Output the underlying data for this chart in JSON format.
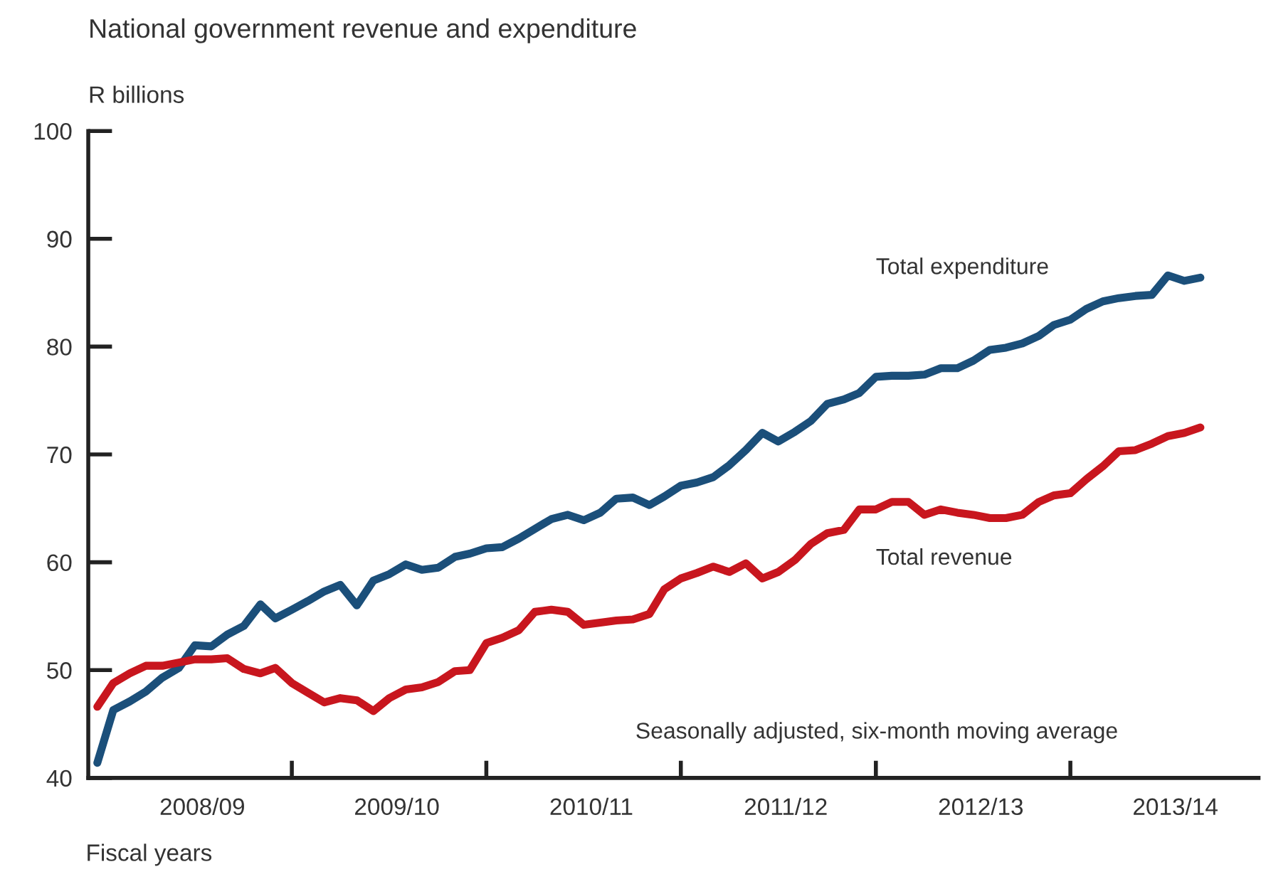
{
  "chart_data": {
    "type": "line",
    "title": "National government revenue and expenditure",
    "ylabel": "R billions",
    "xlabel": "Fiscal years",
    "annotations": [
      "Seasonally adjusted, six-month moving average"
    ],
    "x": [
      "2008-04",
      "2008-05",
      "2008-06",
      "2008-07",
      "2008-08",
      "2008-09",
      "2008-10",
      "2008-11",
      "2008-12",
      "2009-01",
      "2009-02",
      "2009-03",
      "2009-04",
      "2009-05",
      "2009-06",
      "2009-07",
      "2009-08",
      "2009-09",
      "2009-10",
      "2009-11",
      "2009-12",
      "2010-01",
      "2010-02",
      "2010-03",
      "2010-04",
      "2010-05",
      "2010-06",
      "2010-07",
      "2010-08",
      "2010-09",
      "2010-10",
      "2010-11",
      "2010-12",
      "2011-01",
      "2011-02",
      "2011-03",
      "2011-04",
      "2011-05",
      "2011-06",
      "2011-07",
      "2011-08",
      "2011-09",
      "2011-10",
      "2011-11",
      "2011-12",
      "2012-01",
      "2012-02",
      "2012-03",
      "2012-04",
      "2012-05",
      "2012-06",
      "2012-07",
      "2012-08",
      "2012-09",
      "2012-10",
      "2012-11",
      "2012-12",
      "2013-01",
      "2013-02",
      "2013-03",
      "2013-04",
      "2013-05",
      "2013-06",
      "2013-07",
      "2013-08",
      "2013-09",
      "2013-10",
      "2013-11",
      "2013-12"
    ],
    "series": [
      {
        "name": "Total expenditure",
        "color": "#1b4f7a",
        "values": [
          41.4,
          46.3,
          47.1,
          48.0,
          49.3,
          50.2,
          52.3,
          52.2,
          53.3,
          54.1,
          56.1,
          54.8,
          55.6,
          56.4,
          57.3,
          57.9,
          56.0,
          58.3,
          58.9,
          59.8,
          59.3,
          59.5,
          60.5,
          60.8,
          61.3,
          61.4,
          62.2,
          63.1,
          64.0,
          64.4,
          63.9,
          64.6,
          65.9,
          66.0,
          65.3,
          66.1,
          67.1,
          67.4,
          67.9,
          69.0,
          70.4,
          72.0,
          71.2,
          72.1,
          73.1,
          74.7,
          75.1,
          75.7,
          77.2,
          77.3,
          77.3,
          77.4,
          78.0,
          78.0,
          78.7,
          79.7,
          79.9,
          80.3,
          81.0,
          82.0,
          82.5,
          83.5,
          84.2,
          84.5,
          84.7,
          84.8,
          86.6,
          86.1,
          86.4
        ]
      },
      {
        "name": "Total revenue",
        "color": "#c8161e",
        "values": [
          46.6,
          48.8,
          49.7,
          50.4,
          50.4,
          50.7,
          51.0,
          51.0,
          51.1,
          50.1,
          49.7,
          50.2,
          48.8,
          47.9,
          47.0,
          47.4,
          47.2,
          46.2,
          47.4,
          48.2,
          48.4,
          48.9,
          49.9,
          50.0,
          52.5,
          53.0,
          53.7,
          55.4,
          55.6,
          55.4,
          54.2,
          54.4,
          54.6,
          54.7,
          55.2,
          57.5,
          58.5,
          59.0,
          59.6,
          59.1,
          59.9,
          58.5,
          59.1,
          60.2,
          61.7,
          62.7,
          63.0,
          64.9,
          64.9,
          65.6,
          65.6,
          64.4,
          64.9,
          64.6,
          64.4,
          64.1,
          64.1,
          64.4,
          65.6,
          66.2,
          66.4,
          67.7,
          68.9,
          70.3,
          70.4,
          71.0,
          71.7,
          72.0,
          72.5
        ]
      }
    ],
    "xlim": [
      "2008-03-15",
      "2014-03-20"
    ],
    "xticks": [
      {
        "value": "2008-10-15",
        "label": "2008/09"
      },
      {
        "value": "2009-04-01",
        "label": null
      },
      {
        "value": "2009-10-15",
        "label": "2009/10"
      },
      {
        "value": "2010-04-01",
        "label": null
      },
      {
        "value": "2010-10-15",
        "label": "2010/11"
      },
      {
        "value": "2011-04-01",
        "label": null
      },
      {
        "value": "2011-10-15",
        "label": "2011/12"
      },
      {
        "value": "2012-04-01",
        "label": null
      },
      {
        "value": "2012-10-15",
        "label": "2012/13"
      },
      {
        "value": "2013-04-01",
        "label": null
      },
      {
        "value": "2013-10-15",
        "label": "2013/14"
      }
    ],
    "ylim": [
      40,
      100
    ],
    "yticks": [
      40,
      50,
      60,
      70,
      80,
      90,
      100
    ],
    "grid": false,
    "legend": false,
    "marker": "none",
    "line_style": "solid"
  }
}
